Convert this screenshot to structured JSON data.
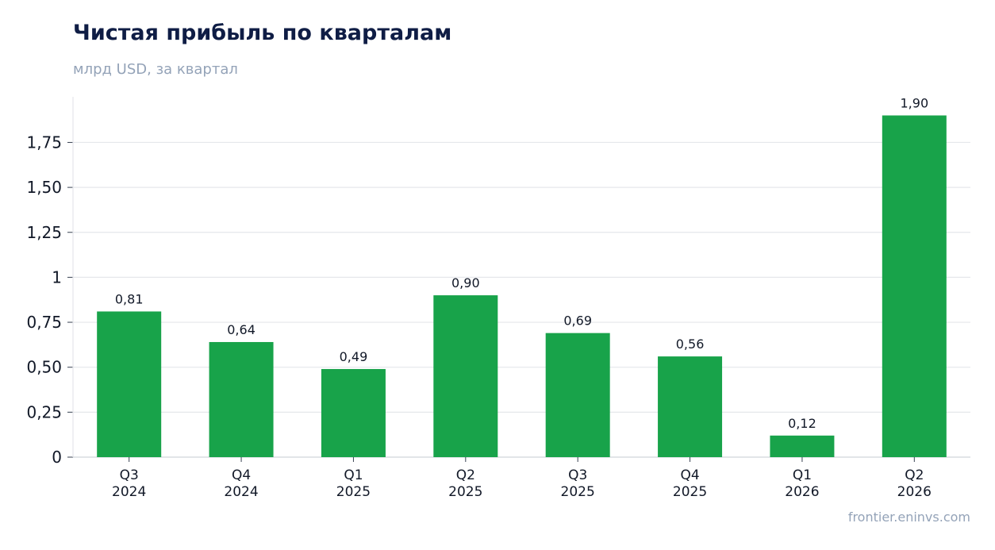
{
  "title": "Чистая прибыль по кварталам",
  "subtitle": "млрд USD, за квартал",
  "source": "frontier.eninvs.com",
  "colors": {
    "bar": "#18a34a",
    "grid": "#e5e7eb",
    "title": "#0f1d45",
    "muted": "#94a3b8"
  },
  "chart_data": {
    "type": "bar",
    "categories": [
      [
        "Q3",
        "2024"
      ],
      [
        "Q4",
        "2024"
      ],
      [
        "Q1",
        "2025"
      ],
      [
        "Q2",
        "2025"
      ],
      [
        "Q3",
        "2025"
      ],
      [
        "Q4",
        "2025"
      ],
      [
        "Q1",
        "2026"
      ],
      [
        "Q2",
        "2026"
      ]
    ],
    "values": [
      0.81,
      0.64,
      0.49,
      0.9,
      0.69,
      0.56,
      0.12,
      1.9
    ],
    "value_labels": [
      "0,81",
      "0,64",
      "0,49",
      "0,90",
      "0,69",
      "0,56",
      "0,12",
      "1,90"
    ],
    "yticks": [
      0,
      0.25,
      0.5,
      0.75,
      1,
      1.25,
      1.5,
      1.75
    ],
    "ytick_labels": [
      "0",
      "0,25",
      "0,50",
      "0,75",
      "1",
      "1,25",
      "1,50",
      "1,75"
    ],
    "ylim": [
      0,
      2
    ],
    "grid": true,
    "legend": "none"
  }
}
